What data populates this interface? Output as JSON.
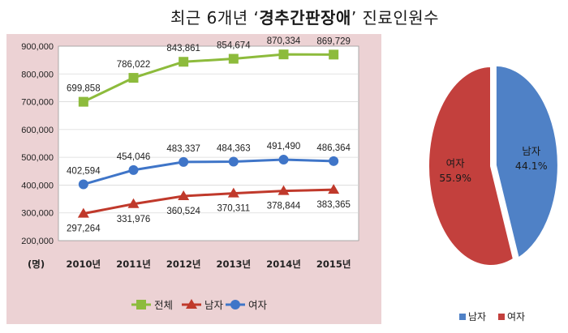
{
  "title": {
    "prefix": "최근 6개년 ‘",
    "highlight": "경추간판장애",
    "suffix": "’ 진료인원수"
  },
  "colors": {
    "total": "#8dbb3c",
    "male": "#c0392b",
    "female": "#3f75c8",
    "pie_male": "#4f81c6",
    "pie_female": "#c3403d",
    "panel_bg": "#ecd2d4",
    "plot_bg": "#ffffff"
  },
  "chart_data": [
    {
      "type": "line",
      "unit_label": "(명)",
      "categories": [
        "2010년",
        "2011년",
        "2012년",
        "2013년",
        "2014년",
        "2015년"
      ],
      "yticks": [
        "200,000",
        "300,000",
        "400,000",
        "500,000",
        "600,000",
        "700,000",
        "800,000",
        "900,000"
      ],
      "ylim": [
        200000,
        900000
      ],
      "series": [
        {
          "name": "전체",
          "marker": "square",
          "values": [
            699858,
            786022,
            843861,
            854674,
            870334,
            869729
          ],
          "labels": [
            "699,858",
            "786,022",
            "843,861",
            "854,674",
            "870,334",
            "869,729"
          ]
        },
        {
          "name": "남자",
          "marker": "triangle",
          "values": [
            297264,
            331976,
            360524,
            370311,
            378844,
            383365
          ],
          "labels": [
            "297,264",
            "331,976",
            "360,524",
            "370,311",
            "378,844",
            "383,365"
          ]
        },
        {
          "name": "여자",
          "marker": "circle",
          "values": [
            402594,
            454046,
            483337,
            484363,
            491490,
            486364
          ],
          "labels": [
            "402,594",
            "454,046",
            "483,337",
            "484,363",
            "491,490",
            "486,364"
          ]
        }
      ],
      "legend": [
        "전체",
        "남자",
        "여자"
      ]
    },
    {
      "type": "pie",
      "slices": [
        {
          "name": "남자",
          "value": 44.1,
          "label": "44.1%"
        },
        {
          "name": "여자",
          "value": 55.9,
          "label": "55.9%"
        }
      ],
      "legend": [
        "남자",
        "여자"
      ]
    }
  ]
}
